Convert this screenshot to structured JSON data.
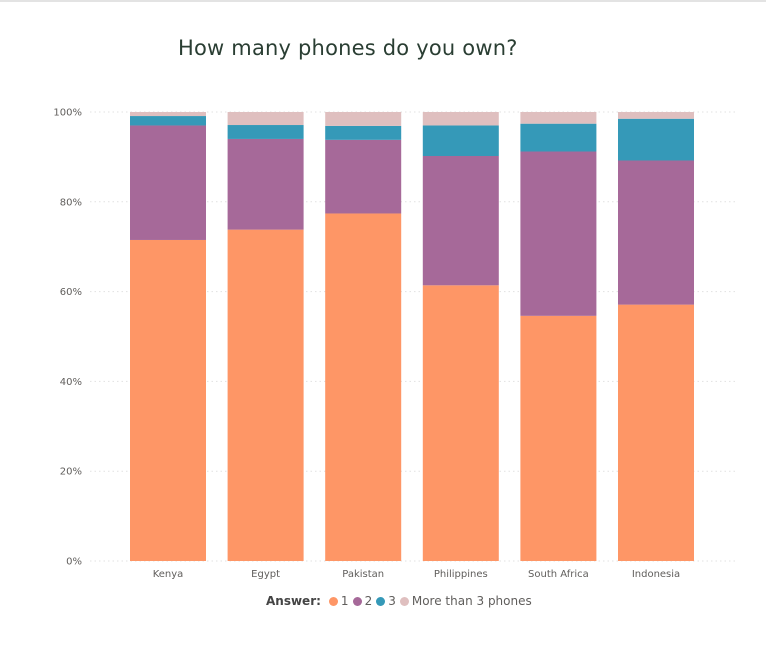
{
  "chart_data": {
    "type": "bar",
    "stacked": "percent",
    "title": "How many phones do you own?",
    "categories": [
      "Kenya",
      "Egypt",
      "Pakistan",
      "Philippines",
      "South Africa",
      "Indonesia"
    ],
    "series": [
      {
        "name": "1",
        "color": "#fe9666",
        "values": [
          71.5,
          73.8,
          77.4,
          61.4,
          54.6,
          57.1
        ]
      },
      {
        "name": "2",
        "color": "#a66999",
        "values": [
          25.5,
          20.2,
          16.4,
          28.8,
          36.6,
          32.1
        ]
      },
      {
        "name": "3",
        "color": "#3599b8",
        "values": [
          2.1,
          3.1,
          3.1,
          6.8,
          6.2,
          9.3
        ]
      },
      {
        "name": "More than 3 phones",
        "color": "#dfbfbf",
        "values": [
          0.9,
          2.9,
          3.1,
          3.0,
          2.6,
          1.5
        ]
      }
    ],
    "ylim": [
      0,
      100
    ],
    "yticks": [
      "0%",
      "20%",
      "40%",
      "60%",
      "80%",
      "100%"
    ],
    "grid": true,
    "legend": {
      "title": "Answer:",
      "placement": "bottom-center"
    }
  }
}
